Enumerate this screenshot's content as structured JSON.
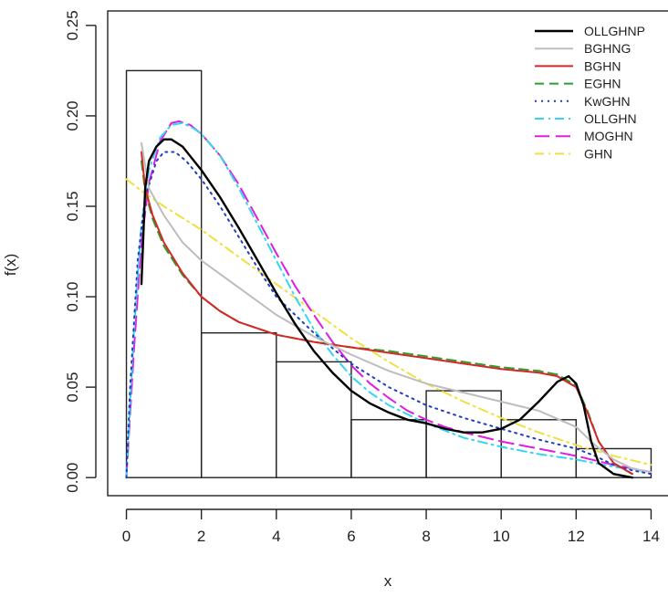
{
  "chart_data": {
    "type": "line",
    "title": "",
    "xlabel": "x",
    "ylabel": "f(x)",
    "xlim": [
      -0.5,
      14.5
    ],
    "ylim": [
      -0.01,
      0.258
    ],
    "x_ticks": [
      0,
      2,
      4,
      6,
      8,
      10,
      12,
      14
    ],
    "x_tick_labels": [
      "0",
      "2",
      "4",
      "6",
      "8",
      "10",
      "12",
      "14"
    ],
    "y_ticks": [
      0.0,
      0.05,
      0.1,
      0.15,
      0.2,
      0.25
    ],
    "y_tick_labels": [
      "0.00",
      "0.05",
      "0.10",
      "0.15",
      "0.20",
      "0.25"
    ],
    "grid": false,
    "legend_position": "top-right",
    "histogram": {
      "bin_edges": [
        0,
        2,
        4,
        6,
        8,
        10,
        12,
        14
      ],
      "densities": [
        0.225,
        0.08,
        0.064,
        0.032,
        0.048,
        0.032,
        0.016
      ]
    },
    "series": [
      {
        "name": "OLLGHNP",
        "color": "#000000",
        "dash": "solid",
        "points": [
          [
            0.4,
            0.107
          ],
          [
            0.5,
            0.16
          ],
          [
            0.6,
            0.175
          ],
          [
            0.8,
            0.183
          ],
          [
            1.0,
            0.187
          ],
          [
            1.2,
            0.187
          ],
          [
            1.5,
            0.183
          ],
          [
            2.0,
            0.17
          ],
          [
            2.5,
            0.155
          ],
          [
            3.0,
            0.138
          ],
          [
            3.5,
            0.12
          ],
          [
            4.0,
            0.102
          ],
          [
            4.5,
            0.085
          ],
          [
            5.0,
            0.07
          ],
          [
            5.5,
            0.058
          ],
          [
            6.0,
            0.048
          ],
          [
            6.5,
            0.041
          ],
          [
            7.0,
            0.036
          ],
          [
            7.5,
            0.032
          ],
          [
            8.0,
            0.03
          ],
          [
            8.5,
            0.027
          ],
          [
            9.0,
            0.025
          ],
          [
            9.5,
            0.025
          ],
          [
            10.0,
            0.027
          ],
          [
            10.5,
            0.032
          ],
          [
            11.0,
            0.042
          ],
          [
            11.5,
            0.053
          ],
          [
            11.8,
            0.056
          ],
          [
            12.0,
            0.052
          ],
          [
            12.2,
            0.04
          ],
          [
            12.4,
            0.02
          ],
          [
            12.6,
            0.008
          ],
          [
            13.0,
            0.002
          ],
          [
            13.5,
            0.0
          ]
        ]
      },
      {
        "name": "BGHNG",
        "color": "#bdbdbd",
        "dash": "solid",
        "points": [
          [
            0.4,
            0.185
          ],
          [
            0.6,
            0.16
          ],
          [
            1.0,
            0.145
          ],
          [
            1.5,
            0.13
          ],
          [
            2.0,
            0.12
          ],
          [
            3.0,
            0.105
          ],
          [
            4.0,
            0.09
          ],
          [
            5.0,
            0.078
          ],
          [
            6.0,
            0.068
          ],
          [
            7.0,
            0.059
          ],
          [
            8.0,
            0.052
          ],
          [
            9.0,
            0.047
          ],
          [
            10.0,
            0.042
          ],
          [
            11.0,
            0.037
          ],
          [
            12.0,
            0.028
          ],
          [
            12.5,
            0.018
          ],
          [
            13.0,
            0.01
          ],
          [
            13.5,
            0.005
          ],
          [
            14.0,
            0.003
          ]
        ]
      },
      {
        "name": "BGHN",
        "color": "#d62728",
        "dash": "solid",
        "points": [
          [
            0.4,
            0.18
          ],
          [
            0.5,
            0.16
          ],
          [
            0.7,
            0.145
          ],
          [
            1.0,
            0.13
          ],
          [
            1.5,
            0.113
          ],
          [
            2.0,
            0.1
          ],
          [
            2.5,
            0.092
          ],
          [
            3.0,
            0.086
          ],
          [
            4.0,
            0.079
          ],
          [
            5.0,
            0.075
          ],
          [
            6.0,
            0.072
          ],
          [
            7.0,
            0.069
          ],
          [
            8.0,
            0.066
          ],
          [
            9.0,
            0.063
          ],
          [
            10.0,
            0.06
          ],
          [
            11.0,
            0.058
          ],
          [
            11.5,
            0.056
          ],
          [
            12.0,
            0.05
          ],
          [
            12.3,
            0.036
          ],
          [
            12.6,
            0.02
          ],
          [
            13.0,
            0.008
          ],
          [
            13.5,
            0.002
          ]
        ]
      },
      {
        "name": "EGHN",
        "color": "#2ca02c",
        "dash": "dashed",
        "points": [
          [
            0.4,
            0.175
          ],
          [
            0.5,
            0.158
          ],
          [
            0.7,
            0.143
          ],
          [
            1.0,
            0.128
          ],
          [
            1.5,
            0.112
          ],
          [
            2.0,
            0.1
          ],
          [
            2.5,
            0.092
          ],
          [
            3.0,
            0.086
          ],
          [
            4.0,
            0.079
          ],
          [
            5.0,
            0.075
          ],
          [
            6.0,
            0.072
          ],
          [
            7.0,
            0.07
          ],
          [
            8.0,
            0.067
          ],
          [
            9.0,
            0.064
          ],
          [
            10.0,
            0.061
          ],
          [
            11.0,
            0.059
          ],
          [
            11.5,
            0.057
          ],
          [
            12.0,
            0.051
          ],
          [
            12.3,
            0.037
          ],
          [
            12.6,
            0.02
          ],
          [
            13.0,
            0.008
          ],
          [
            13.5,
            0.002
          ]
        ]
      },
      {
        "name": "KwGHN",
        "color": "#1f3fbf",
        "dash": "dotted",
        "points": [
          [
            0.0,
            0.0
          ],
          [
            0.1,
            0.05
          ],
          [
            0.3,
            0.12
          ],
          [
            0.5,
            0.155
          ],
          [
            0.8,
            0.175
          ],
          [
            1.0,
            0.18
          ],
          [
            1.3,
            0.18
          ],
          [
            1.6,
            0.175
          ],
          [
            2.0,
            0.165
          ],
          [
            2.5,
            0.15
          ],
          [
            3.0,
            0.133
          ],
          [
            3.5,
            0.116
          ],
          [
            4.0,
            0.1
          ],
          [
            5.0,
            0.08
          ],
          [
            6.0,
            0.063
          ],
          [
            7.0,
            0.05
          ],
          [
            8.0,
            0.04
          ],
          [
            9.0,
            0.033
          ],
          [
            10.0,
            0.027
          ],
          [
            11.0,
            0.021
          ],
          [
            12.0,
            0.016
          ],
          [
            12.5,
            0.012
          ],
          [
            13.0,
            0.007
          ],
          [
            13.5,
            0.004
          ],
          [
            14.0,
            0.002
          ]
        ]
      },
      {
        "name": "OLLGHN",
        "color": "#33d6f0",
        "dash": "dashdot",
        "points": [
          [
            0.0,
            0.0
          ],
          [
            0.2,
            0.08
          ],
          [
            0.4,
            0.14
          ],
          [
            0.6,
            0.17
          ],
          [
            0.9,
            0.188
          ],
          [
            1.2,
            0.195
          ],
          [
            1.5,
            0.196
          ],
          [
            1.8,
            0.193
          ],
          [
            2.0,
            0.19
          ],
          [
            2.5,
            0.178
          ],
          [
            3.0,
            0.16
          ],
          [
            3.5,
            0.14
          ],
          [
            4.0,
            0.12
          ],
          [
            4.5,
            0.1
          ],
          [
            5.0,
            0.082
          ],
          [
            5.5,
            0.068
          ],
          [
            6.0,
            0.056
          ],
          [
            6.5,
            0.047
          ],
          [
            7.0,
            0.04
          ],
          [
            7.5,
            0.035
          ],
          [
            8.0,
            0.03
          ],
          [
            8.5,
            0.026
          ],
          [
            9.0,
            0.022
          ],
          [
            10.0,
            0.017
          ],
          [
            11.0,
            0.013
          ],
          [
            12.0,
            0.01
          ],
          [
            13.0,
            0.006
          ],
          [
            14.0,
            0.003
          ]
        ]
      },
      {
        "name": "MOGHN",
        "color": "#e01ee0",
        "dash": "longdash",
        "points": [
          [
            0.0,
            0.0
          ],
          [
            0.2,
            0.07
          ],
          [
            0.4,
            0.13
          ],
          [
            0.6,
            0.163
          ],
          [
            0.9,
            0.186
          ],
          [
            1.2,
            0.196
          ],
          [
            1.4,
            0.197
          ],
          [
            1.7,
            0.195
          ],
          [
            2.0,
            0.19
          ],
          [
            2.5,
            0.178
          ],
          [
            3.0,
            0.162
          ],
          [
            3.5,
            0.143
          ],
          [
            4.0,
            0.124
          ],
          [
            4.5,
            0.106
          ],
          [
            5.0,
            0.09
          ],
          [
            5.5,
            0.075
          ],
          [
            6.0,
            0.062
          ],
          [
            6.5,
            0.052
          ],
          [
            7.0,
            0.044
          ],
          [
            7.5,
            0.037
          ],
          [
            8.0,
            0.032
          ],
          [
            8.5,
            0.028
          ],
          [
            9.0,
            0.025
          ],
          [
            10.0,
            0.02
          ],
          [
            11.0,
            0.016
          ],
          [
            12.0,
            0.012
          ],
          [
            13.0,
            0.007
          ],
          [
            14.0,
            0.003
          ]
        ]
      },
      {
        "name": "GHN",
        "color": "#f0e040",
        "dash": "dashdot",
        "points": [
          [
            0.0,
            0.165
          ],
          [
            0.5,
            0.157
          ],
          [
            1.0,
            0.15
          ],
          [
            2.0,
            0.137
          ],
          [
            3.0,
            0.122
          ],
          [
            4.0,
            0.107
          ],
          [
            5.0,
            0.092
          ],
          [
            6.0,
            0.077
          ],
          [
            7.0,
            0.064
          ],
          [
            8.0,
            0.052
          ],
          [
            9.0,
            0.042
          ],
          [
            10.0,
            0.033
          ],
          [
            11.0,
            0.025
          ],
          [
            12.0,
            0.018
          ],
          [
            13.0,
            0.012
          ],
          [
            14.0,
            0.007
          ]
        ]
      }
    ]
  }
}
